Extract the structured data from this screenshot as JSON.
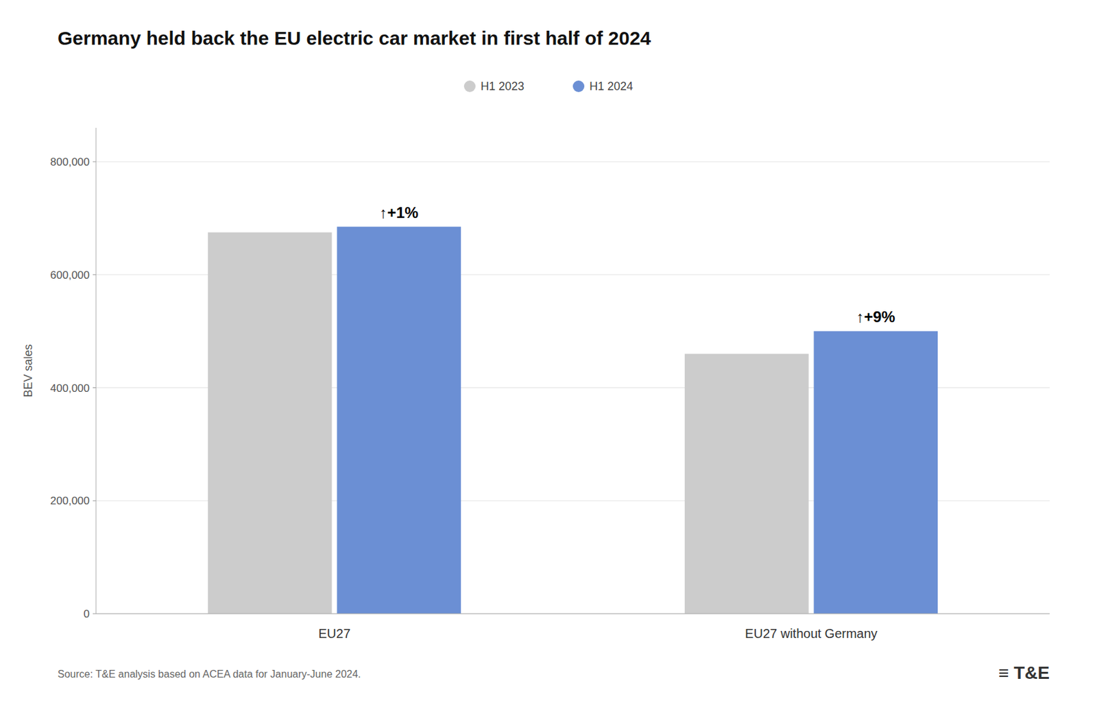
{
  "chart_data": {
    "type": "bar",
    "title": "Germany held back the EU electric car market in first half of 2024",
    "ylabel": "BEV sales",
    "categories": [
      "EU27",
      "EU27 without Germany"
    ],
    "series": [
      {
        "name": "H1 2023",
        "color": "#cccccc",
        "values": [
          675000,
          460000
        ]
      },
      {
        "name": "H1 2024",
        "color": "#6b8fd4",
        "values": [
          685000,
          500000
        ]
      }
    ],
    "annotations": [
      "↑+1%",
      "↑+9%"
    ],
    "source": "Source: T&E analysis based on ACEA data for January-June 2024.",
    "logo": "≡ T&E",
    "ylim": [
      0,
      860000
    ],
    "yticks": [
      0,
      {
        "value": 200000,
        "label": "200,000"
      },
      {
        "value": 400000,
        "label": "400,000"
      },
      {
        "value": 600000,
        "label": "600,000"
      },
      {
        "value": 800000,
        "label": "800,000"
      }
    ],
    "grid": true,
    "legend": "top"
  }
}
